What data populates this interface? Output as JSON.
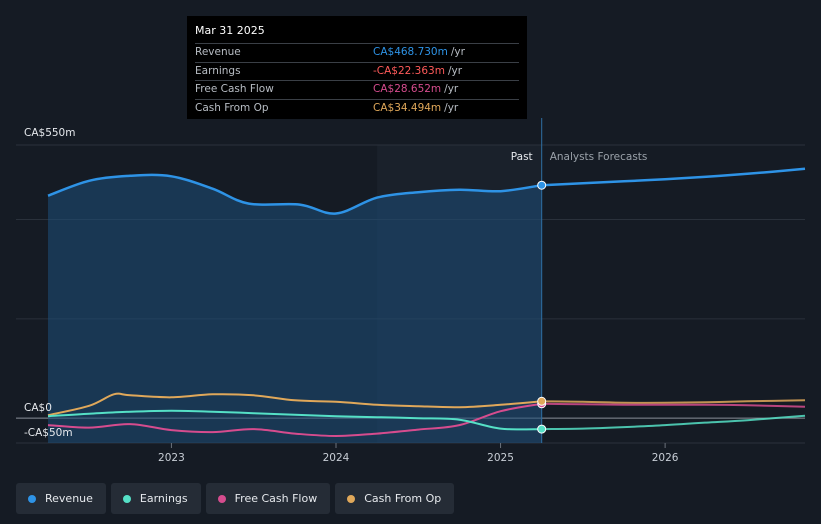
{
  "chart_data": {
    "type": "line",
    "title": "",
    "ylabel": "",
    "y_axis_labels": [
      "CA$550m",
      "CA$0",
      "-CA$50m"
    ],
    "ylim": [
      -50,
      550
    ],
    "x_ticks": [
      "2023",
      "2024",
      "2025",
      "2026"
    ],
    "x_tick_values": [
      2023,
      2024,
      2025,
      2026
    ],
    "xlim": [
      2022.25,
      2026.85
    ],
    "divider_x": 2025.25,
    "forecast_start_x": 2024.25,
    "past_label": "Past",
    "forecast_label": "Analysts Forecasts",
    "series": [
      {
        "name": "Revenue",
        "color": "#2e93e6",
        "filled": true,
        "points": [
          [
            2022.25,
            448
          ],
          [
            2022.5,
            478
          ],
          [
            2022.75,
            488
          ],
          [
            2023.0,
            487
          ],
          [
            2023.25,
            462
          ],
          [
            2023.47,
            432
          ],
          [
            2023.78,
            430
          ],
          [
            2024.0,
            412
          ],
          [
            2024.25,
            444
          ],
          [
            2024.5,
            455
          ],
          [
            2024.75,
            460
          ],
          [
            2025.0,
            457
          ],
          [
            2025.25,
            469
          ],
          [
            2025.5,
            473
          ],
          [
            2025.75,
            477
          ],
          [
            2026.0,
            481
          ],
          [
            2026.25,
            486
          ],
          [
            2026.5,
            492
          ],
          [
            2026.85,
            502
          ]
        ]
      },
      {
        "name": "Earnings",
        "color": "#55e0c6",
        "filled": false,
        "points": [
          [
            2022.25,
            4
          ],
          [
            2022.5,
            9
          ],
          [
            2022.75,
            13
          ],
          [
            2023.0,
            15
          ],
          [
            2023.25,
            13
          ],
          [
            2023.5,
            10
          ],
          [
            2023.75,
            7
          ],
          [
            2024.0,
            4
          ],
          [
            2024.25,
            2
          ],
          [
            2024.5,
            0
          ],
          [
            2024.75,
            -3
          ],
          [
            2025.0,
            -21
          ],
          [
            2025.25,
            -22
          ],
          [
            2025.5,
            -21
          ],
          [
            2025.75,
            -18
          ],
          [
            2026.0,
            -14
          ],
          [
            2026.25,
            -9
          ],
          [
            2026.5,
            -4
          ],
          [
            2026.85,
            5
          ]
        ]
      },
      {
        "name": "Free Cash Flow",
        "color": "#d64c8e",
        "filled": false,
        "points": [
          [
            2022.25,
            -14
          ],
          [
            2022.5,
            -19
          ],
          [
            2022.75,
            -12
          ],
          [
            2023.0,
            -24
          ],
          [
            2023.25,
            -28
          ],
          [
            2023.5,
            -22
          ],
          [
            2023.75,
            -31
          ],
          [
            2024.0,
            -36
          ],
          [
            2024.25,
            -31
          ],
          [
            2024.5,
            -23
          ],
          [
            2024.75,
            -14
          ],
          [
            2025.0,
            14
          ],
          [
            2025.25,
            29
          ],
          [
            2025.5,
            28
          ],
          [
            2025.75,
            27
          ],
          [
            2026.0,
            27
          ],
          [
            2026.25,
            27
          ],
          [
            2026.5,
            26
          ],
          [
            2026.85,
            23
          ]
        ]
      },
      {
        "name": "Cash From Op",
        "color": "#e0a85a",
        "filled": false,
        "points": [
          [
            2022.25,
            6
          ],
          [
            2022.5,
            25
          ],
          [
            2022.65,
            48
          ],
          [
            2022.75,
            46
          ],
          [
            2023.0,
            42
          ],
          [
            2023.25,
            48
          ],
          [
            2023.5,
            46
          ],
          [
            2023.75,
            36
          ],
          [
            2024.0,
            33
          ],
          [
            2024.25,
            27
          ],
          [
            2024.5,
            24
          ],
          [
            2024.75,
            22
          ],
          [
            2025.0,
            27
          ],
          [
            2025.25,
            34
          ],
          [
            2025.5,
            33
          ],
          [
            2025.75,
            31
          ],
          [
            2026.0,
            31
          ],
          [
            2026.25,
            32
          ],
          [
            2026.5,
            34
          ],
          [
            2026.85,
            36
          ]
        ]
      }
    ]
  },
  "tooltip": {
    "date": "Mar 31 2025",
    "rows": [
      {
        "label": "Revenue",
        "value": "CA$468.730m",
        "unit": "/yr",
        "color": "#2e93e6"
      },
      {
        "label": "Earnings",
        "value": "-CA$22.363m",
        "unit": "/yr",
        "color": "#ff5a5a"
      },
      {
        "label": "Free Cash Flow",
        "value": "CA$28.652m",
        "unit": "/yr",
        "color": "#d64c8e"
      },
      {
        "label": "Cash From Op",
        "value": "CA$34.494m",
        "unit": "/yr",
        "color": "#e0a85a"
      }
    ]
  },
  "legend": [
    {
      "label": "Revenue",
      "color": "#2e93e6"
    },
    {
      "label": "Earnings",
      "color": "#55e0c6"
    },
    {
      "label": "Free Cash Flow",
      "color": "#d64c8e"
    },
    {
      "label": "Cash From Op",
      "color": "#e0a85a"
    }
  ]
}
